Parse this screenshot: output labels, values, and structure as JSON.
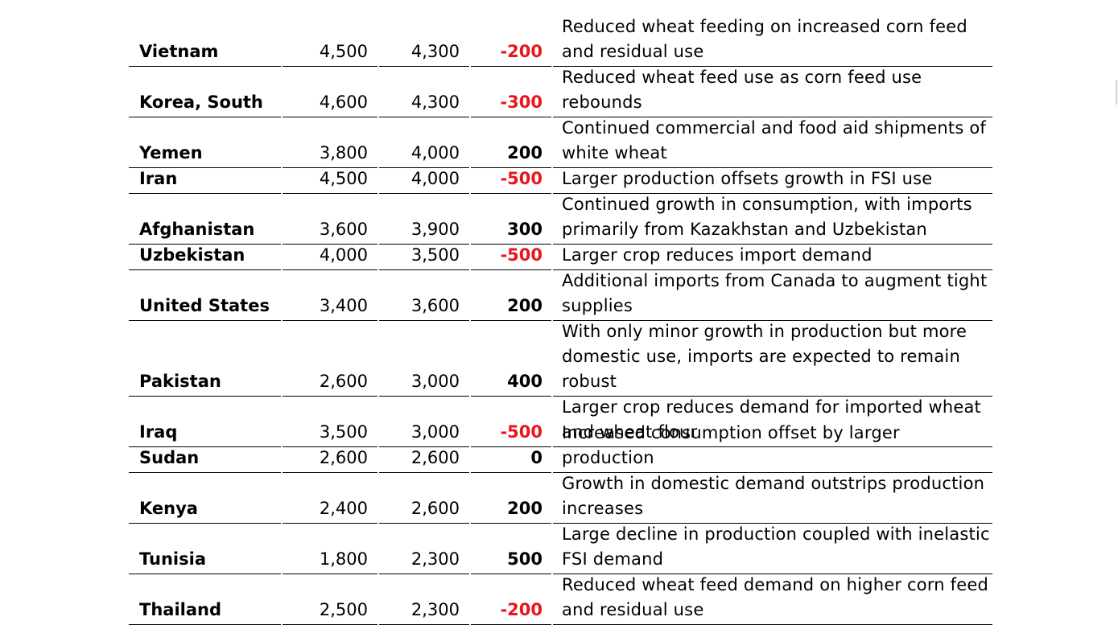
{
  "rows": [
    {
      "country": "Vietnam",
      "v1": "4,500",
      "v2": "4,300",
      "change": "-200",
      "negative": true,
      "note": "Reduced wheat feeding on increased corn feed\nand residual use",
      "lines": 2
    },
    {
      "country": "Korea, South",
      "v1": "4,600",
      "v2": "4,300",
      "change": "-300",
      "negative": true,
      "note": "Reduced wheat feed use as corn feed use\nrebounds",
      "lines": 2
    },
    {
      "country": "Yemen",
      "v1": "3,800",
      "v2": "4,000",
      "change": "200",
      "negative": false,
      "note": "Continued commercial and food aid shipments of\nwhite wheat",
      "lines": 2
    },
    {
      "country": "Iran",
      "v1": "4,500",
      "v2": "4,000",
      "change": "-500",
      "negative": true,
      "note": "Larger production offsets growth in FSI use",
      "lines": 1
    },
    {
      "country": "Afghanistan",
      "v1": "3,600",
      "v2": "3,900",
      "change": "300",
      "negative": false,
      "note": "Continued growth in consumption, with imports\nprimarily from Kazakhstan and Uzbekistan",
      "lines": 2
    },
    {
      "country": "Uzbekistan",
      "v1": "4,000",
      "v2": "3,500",
      "change": "-500",
      "negative": true,
      "note": "Larger crop reduces import demand",
      "lines": 1
    },
    {
      "country": "United States",
      "v1": "3,400",
      "v2": "3,600",
      "change": "200",
      "negative": false,
      "note": "Additional imports from Canada to augment tight\nsupplies",
      "lines": 2
    },
    {
      "country": "Pakistan",
      "v1": "2,600",
      "v2": "3,000",
      "change": "400",
      "negative": false,
      "note": "With only minor growth in production but more\ndomestic use, imports are expected to remain\nrobust",
      "lines": 3
    },
    {
      "country": "Iraq",
      "v1": "3,500",
      "v2": "3,000",
      "change": "-500",
      "negative": true,
      "note": "Larger crop reduces demand for imported wheat\nand wheat flour",
      "lines": 2
    },
    {
      "country": "Sudan",
      "v1": "2,600",
      "v2": "2,600",
      "change": "0",
      "negative": false,
      "note": "Increased consumption offset by larger production",
      "lines": 1
    },
    {
      "country": "Kenya",
      "v1": "2,400",
      "v2": "2,600",
      "change": "200",
      "negative": false,
      "note": "Growth in domestic demand outstrips production\nincreases",
      "lines": 2
    },
    {
      "country": "Tunisia",
      "v1": "1,800",
      "v2": "2,300",
      "change": "500",
      "negative": false,
      "note": "Large decline in production coupled with inelastic\nFSI demand",
      "lines": 2
    },
    {
      "country": "Thailand",
      "v1": "2,500",
      "v2": "2,300",
      "change": "-200",
      "negative": true,
      "note": "Reduced wheat feed demand on higher corn feed\nand residual use",
      "lines": 2
    }
  ],
  "colors": {
    "negative": "#e8151d",
    "text": "#000000",
    "rule": "#000000"
  }
}
